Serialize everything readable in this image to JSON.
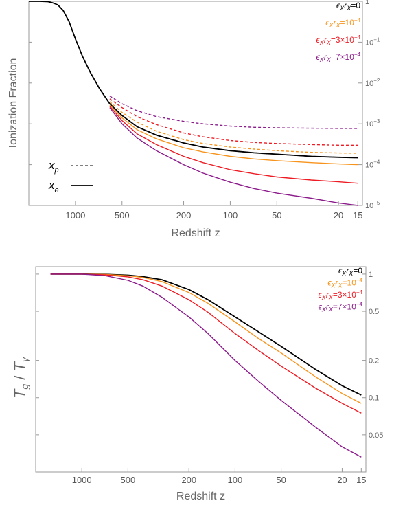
{
  "chart_data": [
    {
      "type": "line",
      "xlabel": "Redshift z",
      "ylabel": "Ionization Fraction",
      "x_scale": "log-reversed",
      "xlim": [
        2000,
        14
      ],
      "y_scale": "log",
      "ylim": [
        1e-05,
        1
      ],
      "x_ticks": [
        1000,
        500,
        200,
        100,
        50,
        20,
        15
      ],
      "x_tick_labels": [
        "1000",
        "500",
        "200",
        "100",
        "50",
        "20",
        "15"
      ],
      "y_ticks": [
        1,
        0.1,
        0.01,
        0.001,
        0.0001,
        1e-05
      ],
      "y_tick_labels": [
        {
          "base": "1",
          "exp": ""
        },
        {
          "base": "10",
          "exp": "−1"
        },
        {
          "base": "10",
          "exp": "−2"
        },
        {
          "base": "10",
          "exp": "−3"
        },
        {
          "base": "10",
          "exp": "−4"
        },
        {
          "base": "10",
          "exp": "−5"
        }
      ],
      "legend_position": "top-right",
      "style_legend": [
        {
          "symbol": "x",
          "sub": "p",
          "dash": "dashed"
        },
        {
          "symbol": "x",
          "sub": "e",
          "dash": "solid"
        }
      ],
      "series": [
        {
          "name": "ϵXrX=0",
          "label": {
            "pre": "ϵ",
            "s1": "X",
            "mid": "r",
            "s2": "X",
            "val": "=0",
            "exp": ""
          },
          "color": "#000000",
          "dash": "solid",
          "x": [
            2000,
            1700,
            1500,
            1400,
            1300,
            1200,
            1100,
            1000,
            900,
            800,
            700,
            600,
            500,
            400,
            300,
            200,
            150,
            100,
            70,
            50,
            30,
            20,
            15
          ],
          "y": [
            1,
            1,
            0.98,
            0.92,
            0.82,
            0.6,
            0.32,
            0.12,
            0.045,
            0.018,
            0.0074,
            0.0031,
            0.0016,
            0.00085,
            0.00053,
            0.00034,
            0.00027,
            0.00022,
            0.000195,
            0.00018,
            0.00016,
            0.000152,
            0.000148
          ]
        },
        {
          "name": "ϵXrX=10−4",
          "label": {
            "pre": "ϵ",
            "s1": "X",
            "mid": "r",
            "s2": "X",
            "val": "=10",
            "exp": "−4"
          },
          "color": "#f7941d",
          "dash": "solid",
          "x": [
            600,
            500,
            400,
            300,
            200,
            150,
            100,
            70,
            50,
            30,
            20,
            15
          ],
          "y": [
            0.0029,
            0.0014,
            0.00072,
            0.00043,
            0.00026,
            0.000205,
            0.00016,
            0.000138,
            0.000125,
            0.000112,
            0.000104,
            0.0001
          ]
        },
        {
          "name": "ϵXrX=3×10−4",
          "label": {
            "pre": "ϵ",
            "s1": "X",
            "mid": "r",
            "s2": "X",
            "val": "=3×10",
            "exp": "−4"
          },
          "color": "#ed1c24",
          "dash": "solid",
          "x": [
            600,
            500,
            400,
            300,
            200,
            150,
            100,
            70,
            50,
            30,
            20,
            15
          ],
          "y": [
            0.0027,
            0.0012,
            0.00057,
            0.00031,
            0.00016,
            0.000112,
            7.5e-05,
            6e-05,
            5e-05,
            4.2e-05,
            3.8e-05,
            3.5e-05
          ]
        },
        {
          "name": "ϵXrX=7×10−4",
          "label": {
            "pre": "ϵ",
            "s1": "X",
            "mid": "r",
            "s2": "X",
            "val": "=7×10",
            "exp": "−4"
          },
          "color": "#8b1a8b",
          "dash": "solid",
          "x": [
            600,
            500,
            400,
            300,
            200,
            150,
            100,
            70,
            50,
            30,
            20,
            15
          ],
          "y": [
            0.0025,
            0.001,
            0.00045,
            0.00022,
            0.0001,
            6.2e-05,
            3.7e-05,
            2.6e-05,
            2e-05,
            1.5e-05,
            1.15e-05,
            1e-05
          ]
        },
        {
          "name": "x_p ϵXrX=0",
          "color": "#000000",
          "dash": "dashed",
          "in_legend": false,
          "x": [
            600,
            500,
            400,
            300,
            200,
            150,
            100,
            70,
            50,
            30,
            20,
            15
          ],
          "y": [
            0.0031,
            0.0016,
            0.00085,
            0.00053,
            0.00034,
            0.00027,
            0.00022,
            0.000195,
            0.00018,
            0.00016,
            0.000152,
            0.000148
          ]
        },
        {
          "name": "x_p ϵXrX=10−4",
          "color": "#f7941d",
          "dash": "dashed",
          "in_legend": false,
          "x": [
            600,
            500,
            400,
            300,
            200,
            150,
            100,
            70,
            50,
            30,
            20,
            15
          ],
          "y": [
            0.0035,
            0.0019,
            0.0011,
            0.00066,
            0.00041,
            0.00033,
            0.00027,
            0.00024,
            0.00022,
            0.0002,
            0.000193,
            0.00019
          ]
        },
        {
          "name": "x_p ϵXrX=3×10−4",
          "color": "#ed1c24",
          "dash": "dashed",
          "in_legend": false,
          "x": [
            600,
            500,
            400,
            300,
            200,
            150,
            100,
            70,
            50,
            30,
            20,
            15
          ],
          "y": [
            0.0041,
            0.0025,
            0.0015,
            0.00096,
            0.0006,
            0.00048,
            0.00039,
            0.00035,
            0.00033,
            0.00031,
            0.0003,
            0.0003
          ]
        },
        {
          "name": "x_p ϵXrX=7×10−4",
          "color": "#8b1a8b",
          "dash": "dashed",
          "in_legend": false,
          "x": [
            600,
            500,
            400,
            300,
            200,
            150,
            100,
            70,
            50,
            30,
            20,
            15
          ],
          "y": [
            0.0048,
            0.0031,
            0.0021,
            0.0015,
            0.00115,
            0.001,
            0.00088,
            0.00082,
            0.0008,
            0.00078,
            0.00077,
            0.00077
          ]
        }
      ]
    },
    {
      "type": "line",
      "xlabel": "Redshift z",
      "ylabel": {
        "t1": "T",
        "s1": "g",
        "slash": " / ",
        "t2": "T",
        "s2": "γ"
      },
      "x_scale": "log-reversed",
      "xlim": [
        2000,
        14
      ],
      "y_scale": "log",
      "ylim": [
        0.025,
        1.15
      ],
      "x_ticks": [
        1000,
        500,
        200,
        100,
        50,
        20,
        15
      ],
      "x_tick_labels": [
        "1000",
        "500",
        "200",
        "100",
        "50",
        "20",
        "15"
      ],
      "y_ticks": [
        1,
        0.5,
        0.2,
        0.1,
        0.05
      ],
      "y_tick_labels": [
        {
          "base": "1",
          "exp": ""
        },
        {
          "base": "0.5",
          "exp": ""
        },
        {
          "base": "0.2",
          "exp": ""
        },
        {
          "base": "0.1",
          "exp": ""
        },
        {
          "base": "0.05",
          "exp": ""
        }
      ],
      "legend_position": "top-right",
      "series": [
        {
          "name": "ϵXrX=0",
          "label": {
            "pre": "ϵ",
            "s1": "X",
            "mid": "r",
            "s2": "X",
            "val": "=0",
            "exp": ""
          },
          "color": "#000000",
          "dash": "solid",
          "x": [
            1600,
            1000,
            700,
            500,
            400,
            300,
            200,
            150,
            100,
            70,
            50,
            30,
            20,
            15
          ],
          "y": [
            1,
            1,
            0.995,
            0.98,
            0.955,
            0.9,
            0.75,
            0.62,
            0.45,
            0.34,
            0.26,
            0.17,
            0.125,
            0.105
          ]
        },
        {
          "name": "ϵXrX=10−4",
          "label": {
            "pre": "ϵ",
            "s1": "X",
            "mid": "r",
            "s2": "X",
            "val": "=10",
            "exp": "−4"
          },
          "color": "#f7941d",
          "dash": "solid",
          "x": [
            1600,
            1000,
            700,
            500,
            400,
            300,
            200,
            150,
            100,
            70,
            50,
            30,
            20,
            15
          ],
          "y": [
            1,
            1,
            0.993,
            0.97,
            0.94,
            0.87,
            0.71,
            0.58,
            0.41,
            0.3,
            0.23,
            0.148,
            0.108,
            0.09
          ]
        },
        {
          "name": "ϵXrX=3×10−4",
          "label": {
            "pre": "ϵ",
            "s1": "X",
            "mid": "r",
            "s2": "X",
            "val": "=3×10",
            "exp": "−4"
          },
          "color": "#ed1c24",
          "dash": "solid",
          "x": [
            1600,
            1000,
            700,
            500,
            400,
            300,
            200,
            150,
            100,
            70,
            50,
            30,
            20,
            15
          ],
          "y": [
            1,
            1,
            0.985,
            0.95,
            0.9,
            0.8,
            0.62,
            0.49,
            0.33,
            0.24,
            0.18,
            0.12,
            0.09,
            0.075
          ]
        },
        {
          "name": "ϵXrX=7×10−4",
          "label": {
            "pre": "ϵ",
            "s1": "X",
            "mid": "r",
            "s2": "X",
            "val": "=7×10",
            "exp": "−4"
          },
          "color": "#8b1a8b",
          "dash": "solid",
          "x": [
            1600,
            1000,
            700,
            500,
            400,
            300,
            200,
            150,
            100,
            70,
            50,
            30,
            20,
            15
          ],
          "y": [
            1,
            1,
            0.97,
            0.89,
            0.8,
            0.65,
            0.45,
            0.33,
            0.2,
            0.135,
            0.095,
            0.058,
            0.04,
            0.033
          ]
        }
      ]
    }
  ]
}
